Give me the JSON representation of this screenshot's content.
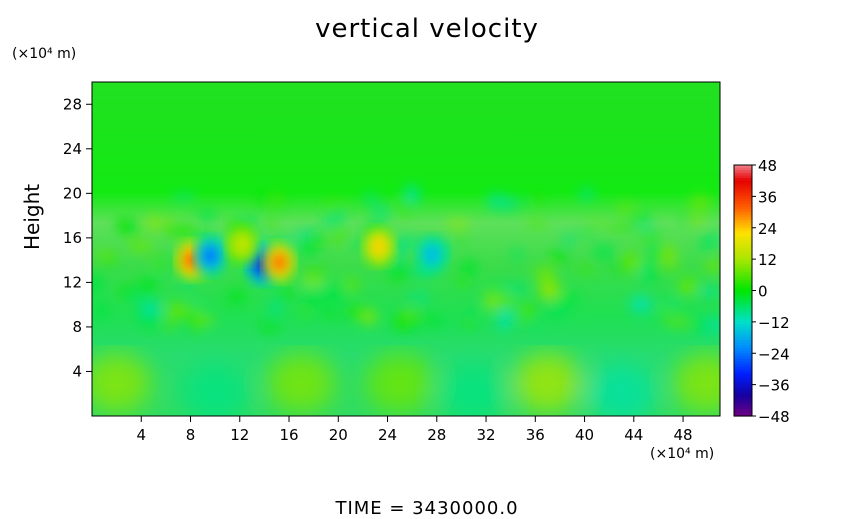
{
  "chart_data": {
    "type": "heatmap",
    "title": "vertical velocity",
    "ylabel": "Height",
    "y_unit": "(×10⁴ m)",
    "x_unit": "(×10⁴ m)",
    "x_ticks": [
      4,
      8,
      12,
      16,
      20,
      24,
      28,
      32,
      36,
      40,
      44,
      48
    ],
    "y_ticks": [
      4,
      8,
      12,
      16,
      20,
      24,
      28
    ],
    "xlim": [
      0,
      51
    ],
    "ylim": [
      0,
      30
    ],
    "colorbar": {
      "ticks": [
        48,
        36,
        24,
        12,
        0,
        -12,
        -24,
        -36,
        -48
      ],
      "range": [
        -48,
        48
      ]
    },
    "time_label": "TIME  =  3430000.0",
    "features": [
      {
        "x": 8.1,
        "y": 14.0,
        "value": 36
      },
      {
        "x": 9.6,
        "y": 14.4,
        "value": -26
      },
      {
        "x": 13.8,
        "y": 13.6,
        "value": -40
      },
      {
        "x": 15.2,
        "y": 13.8,
        "value": 34
      },
      {
        "x": 12.2,
        "y": 15.4,
        "value": 16
      },
      {
        "x": 23.3,
        "y": 15.2,
        "value": 24
      },
      {
        "x": 27.6,
        "y": 14.5,
        "value": -18
      }
    ]
  }
}
